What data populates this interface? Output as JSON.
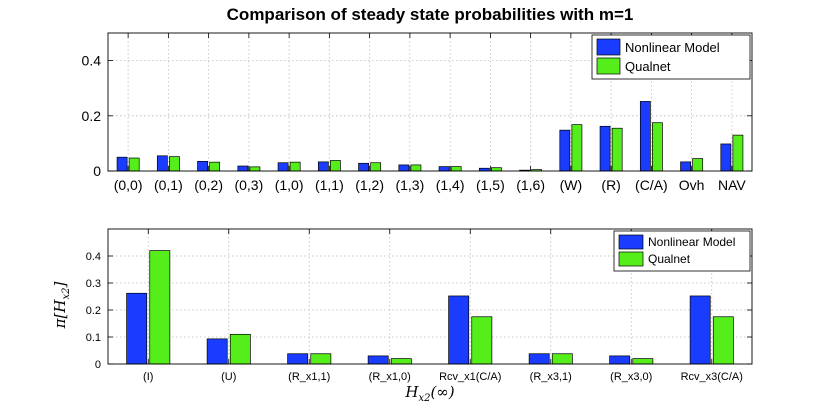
{
  "chart_data": [
    {
      "type": "bar",
      "title": "Comparison of steady state probabilities with m=1",
      "xlabel": "",
      "ylabel": "",
      "ylim": [
        0,
        0.5
      ],
      "yticks": [
        "0",
        "0.2",
        "0.4"
      ],
      "ytick_values": [
        0,
        0.2,
        0.4
      ],
      "grid": true,
      "legend_position": "top-right",
      "categories": [
        "(0,0)",
        "(0,1)",
        "(0,2)",
        "(0,3)",
        "(1,0)",
        "(1,1)",
        "(1,2)",
        "(1,3)",
        "(1,4)",
        "(1,5)",
        "(1,6)",
        "(W)",
        "(R)",
        "(C/A)",
        "Ovh",
        "NAV"
      ],
      "series": [
        {
          "name": "Nonlinear Model",
          "color": "#1a3cff",
          "values": [
            0.05,
            0.055,
            0.035,
            0.018,
            0.03,
            0.033,
            0.028,
            0.022,
            0.016,
            0.01,
            0.003,
            0.148,
            0.162,
            0.252,
            0.033,
            0.098
          ]
        },
        {
          "name": "Qualnet",
          "color": "#55ee1a",
          "values": [
            0.047,
            0.052,
            0.032,
            0.015,
            0.032,
            0.038,
            0.03,
            0.022,
            0.016,
            0.012,
            0.005,
            0.168,
            0.155,
            0.175,
            0.045,
            0.13
          ]
        }
      ]
    },
    {
      "type": "bar",
      "title": "",
      "xlabel": "H_{x2}(∞)",
      "ylabel": "π[H_{x2}]",
      "ylim": [
        0,
        0.5
      ],
      "yticks": [
        "0",
        "0.1",
        "0.2",
        "0.3",
        "0.4"
      ],
      "ytick_values": [
        0,
        0.1,
        0.2,
        0.3,
        0.4
      ],
      "grid": true,
      "legend_position": "top-right",
      "categories": [
        "(I)",
        "(U)",
        "(R_x1,1)",
        "(R_x1,0)",
        "Rcv_x1(C/A)",
        "(R_x3,1)",
        "(R_x3,0)",
        "Rcv_x3(C/A)"
      ],
      "series": [
        {
          "name": "Nonlinear Model",
          "color": "#1a3cff",
          "values": [
            0.262,
            0.093,
            0.038,
            0.03,
            0.252,
            0.038,
            0.03,
            0.252
          ]
        },
        {
          "name": "Qualnet",
          "color": "#55ee1a",
          "values": [
            0.42,
            0.11,
            0.038,
            0.02,
            0.175,
            0.038,
            0.02,
            0.175
          ]
        }
      ]
    }
  ],
  "ylabel_parts": {
    "pi": "π",
    "lbr": "[",
    "H": "H",
    "sub": "x2",
    "rbr": "]"
  },
  "xlabel_parts": {
    "H": "H",
    "sub": "x2",
    "arg": "(∞)"
  }
}
